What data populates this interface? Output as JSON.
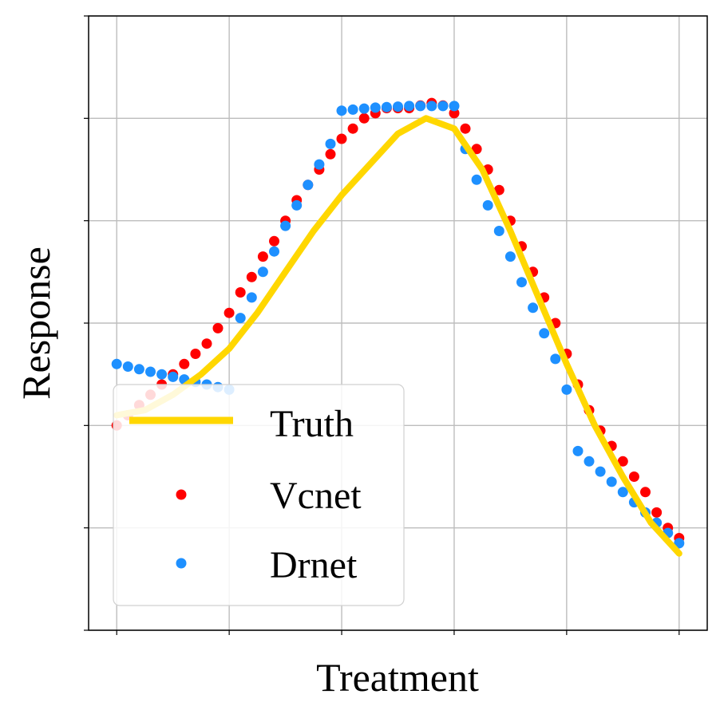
{
  "chart_data": {
    "type": "line",
    "xlabel": "Treatment",
    "ylabel": "Response",
    "xlim": [
      0.0,
      1.0
    ],
    "ylim": [
      -0.1,
      1.1
    ],
    "xticks": [
      0.0,
      0.2,
      0.4,
      0.6,
      0.8,
      1.0
    ],
    "yticks": [
      -0.1,
      0.1,
      0.3,
      0.5,
      0.7,
      0.9,
      1.1
    ],
    "tick_labels_visible": false,
    "grid": true,
    "legend_position": "lower-left",
    "series": [
      {
        "name": "Truth",
        "kind": "line",
        "color": "#FFD700",
        "x": [
          0.0,
          0.05,
          0.1,
          0.15,
          0.2,
          0.25,
          0.3,
          0.35,
          0.4,
          0.45,
          0.5,
          0.55,
          0.6,
          0.65,
          0.7,
          0.75,
          0.8,
          0.85,
          0.9,
          0.95,
          1.0
        ],
        "y": [
          0.32,
          0.33,
          0.36,
          0.4,
          0.45,
          0.52,
          0.6,
          0.68,
          0.75,
          0.81,
          0.87,
          0.9,
          0.88,
          0.8,
          0.68,
          0.55,
          0.42,
          0.3,
          0.2,
          0.11,
          0.05
        ]
      },
      {
        "name": "Vcnet",
        "kind": "scatter",
        "color": "#FF0000",
        "x": [
          0.0,
          0.02,
          0.04,
          0.06,
          0.08,
          0.1,
          0.12,
          0.14,
          0.16,
          0.18,
          0.2,
          0.22,
          0.24,
          0.26,
          0.28,
          0.3,
          0.32,
          0.34,
          0.36,
          0.38,
          0.4,
          0.42,
          0.44,
          0.46,
          0.48,
          0.5,
          0.52,
          0.54,
          0.56,
          0.58,
          0.6,
          0.62,
          0.64,
          0.66,
          0.68,
          0.7,
          0.72,
          0.74,
          0.76,
          0.78,
          0.8,
          0.82,
          0.84,
          0.86,
          0.88,
          0.9,
          0.92,
          0.94,
          0.96,
          0.98,
          1.0
        ],
        "y": [
          0.3,
          0.32,
          0.34,
          0.36,
          0.38,
          0.4,
          0.42,
          0.44,
          0.46,
          0.49,
          0.52,
          0.56,
          0.59,
          0.63,
          0.66,
          0.7,
          0.74,
          0.77,
          0.8,
          0.83,
          0.86,
          0.88,
          0.9,
          0.91,
          0.92,
          0.92,
          0.92,
          0.925,
          0.93,
          0.925,
          0.91,
          0.88,
          0.84,
          0.8,
          0.76,
          0.7,
          0.65,
          0.6,
          0.55,
          0.5,
          0.44,
          0.38,
          0.33,
          0.29,
          0.26,
          0.23,
          0.2,
          0.17,
          0.13,
          0.1,
          0.08
        ]
      },
      {
        "name": "Drnet",
        "kind": "scatter",
        "color": "#1E90FF",
        "x": [
          0.0,
          0.02,
          0.04,
          0.06,
          0.08,
          0.1,
          0.12,
          0.14,
          0.16,
          0.18,
          0.2,
          0.22,
          0.24,
          0.26,
          0.28,
          0.3,
          0.32,
          0.34,
          0.36,
          0.38,
          0.4,
          0.42,
          0.44,
          0.46,
          0.48,
          0.5,
          0.52,
          0.54,
          0.56,
          0.58,
          0.6,
          0.62,
          0.64,
          0.66,
          0.68,
          0.7,
          0.72,
          0.74,
          0.76,
          0.78,
          0.8,
          0.82,
          0.84,
          0.86,
          0.88,
          0.9,
          0.92,
          0.94,
          0.96,
          0.98,
          1.0
        ],
        "y": [
          0.42,
          0.415,
          0.41,
          0.405,
          0.4,
          0.395,
          0.39,
          0.385,
          0.38,
          0.375,
          0.37,
          0.51,
          0.55,
          0.6,
          0.64,
          0.69,
          0.73,
          0.77,
          0.81,
          0.85,
          0.915,
          0.917,
          0.919,
          0.921,
          0.922,
          0.923,
          0.924,
          0.924,
          0.924,
          0.924,
          0.924,
          0.84,
          0.78,
          0.73,
          0.68,
          0.63,
          0.58,
          0.53,
          0.48,
          0.43,
          0.37,
          0.25,
          0.23,
          0.21,
          0.19,
          0.17,
          0.15,
          0.13,
          0.11,
          0.09,
          0.07
        ]
      }
    ]
  }
}
